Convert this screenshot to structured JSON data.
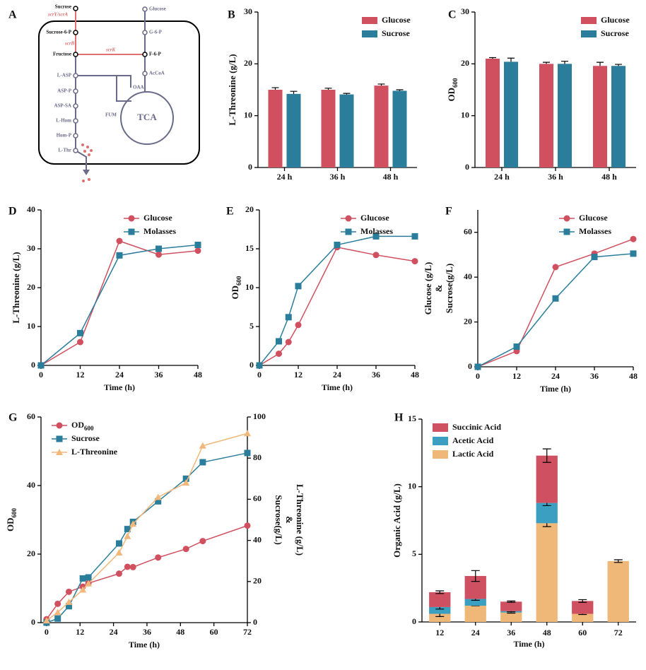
{
  "diagram": {
    "panel": "A",
    "nodes": [
      "Sucrose",
      "Sucrose-6-P",
      "Fructose",
      "F-6-P",
      "Glucose",
      "G-6-P",
      "AcCoA",
      "OAA",
      "L-ASP",
      "ASP-P",
      "ASP-SA",
      "L-Hom",
      "Hom-P",
      "L-Thr",
      "FUM"
    ],
    "enzymes": [
      "scrY/scrA",
      "scrB",
      "scrK"
    ],
    "cycle": "TCA"
  },
  "chart_data": [
    {
      "panel": "B",
      "type": "bar",
      "y_label": "L-Threonine (g/L)",
      "categories": [
        "24 h",
        "36 h",
        "48 h"
      ],
      "ylim": [
        0,
        30
      ],
      "yticks": [
        0,
        10,
        20,
        30
      ],
      "legend": "upper right",
      "series": [
        {
          "name": "Glucose",
          "color": "#d0505f",
          "values": [
            15,
            15,
            15.8
          ],
          "errors": [
            0.4,
            0.3,
            0.3
          ]
        },
        {
          "name": "Sucrose",
          "color": "#2a7d9b",
          "values": [
            14.2,
            14.1,
            14.8
          ],
          "errors": [
            0.5,
            0.2,
            0.2
          ]
        }
      ]
    },
    {
      "panel": "C",
      "type": "bar",
      "y_label": "OD",
      "y_label_sub": "600",
      "categories": [
        "24 h",
        "36 h",
        "48 h"
      ],
      "ylim": [
        0,
        30
      ],
      "yticks": [
        0,
        10,
        20,
        30
      ],
      "legend": "upper right",
      "series": [
        {
          "name": "Glucose",
          "color": "#d0505f",
          "values": [
            21,
            20,
            19.6
          ],
          "errors": [
            0.2,
            0.3,
            0.7
          ]
        },
        {
          "name": "Sucrose",
          "color": "#2a7d9b",
          "values": [
            20.4,
            20,
            19.6
          ],
          "errors": [
            0.7,
            0.5,
            0.3
          ]
        }
      ]
    },
    {
      "panel": "D",
      "type": "line",
      "x_label": "Time (h)",
      "y_label": "L-Threonine (g/L)",
      "x": [
        0,
        12,
        24,
        36,
        48
      ],
      "xlim": [
        0,
        48
      ],
      "xticks": [
        0,
        12,
        24,
        36,
        48
      ],
      "ylim": [
        0,
        40
      ],
      "yticks": [
        0,
        10,
        20,
        30,
        40
      ],
      "legend": "upper right",
      "series": [
        {
          "name": "Glucose",
          "color": "#d0505f",
          "marker": "circle",
          "values": [
            0,
            6,
            32,
            28.5,
            29.5
          ]
        },
        {
          "name": "Molasses",
          "color": "#2a7d9b",
          "marker": "square",
          "values": [
            0,
            8.3,
            28.3,
            30,
            31
          ]
        }
      ]
    },
    {
      "panel": "E",
      "type": "line",
      "x_label": "Time (h)",
      "y_label": "OD",
      "y_label_sub": "600",
      "x": [
        0,
        6,
        9,
        12,
        24,
        36,
        48
      ],
      "xlim": [
        0,
        48
      ],
      "xticks": [
        0,
        12,
        24,
        36,
        48
      ],
      "ylim": [
        0,
        20
      ],
      "yticks": [
        0,
        5,
        10,
        15,
        20
      ],
      "legend": "upper right",
      "series": [
        {
          "name": "Glucose",
          "color": "#d0505f",
          "marker": "circle",
          "values": [
            0,
            1.5,
            3,
            5.2,
            15.2,
            14.2,
            13.4
          ]
        },
        {
          "name": "Molasses",
          "color": "#2a7d9b",
          "marker": "square",
          "values": [
            0,
            3.1,
            6.2,
            10.2,
            15.5,
            16.6,
            16.6
          ]
        }
      ]
    },
    {
      "panel": "F",
      "type": "line",
      "x_label": "Time (h)",
      "y_label": [
        "Glucose (g/L)",
        "&",
        "Sucrose(g/L)"
      ],
      "x": [
        0,
        12,
        24,
        36,
        48
      ],
      "xlim": [
        0,
        48
      ],
      "xticks": [
        0,
        12,
        24,
        36,
        48
      ],
      "ylim": [
        0,
        70
      ],
      "yticks": [
        0,
        20,
        40,
        60
      ],
      "legend": "upper right",
      "series": [
        {
          "name": "Glucose",
          "color": "#d0505f",
          "marker": "circle",
          "values": [
            0,
            7,
            44.5,
            50.5,
            57
          ]
        },
        {
          "name": "Molasses",
          "color": "#2a7d9b",
          "marker": "square",
          "values": [
            0,
            9,
            30.5,
            49,
            50.5
          ]
        }
      ]
    },
    {
      "panel": "G",
      "type": "line",
      "x_label": "Time (h)",
      "y_label": "OD",
      "y_label_sub": "600",
      "y2_label": [
        "L-Threonine (g/L)",
        "&",
        "Sucrose(g/L)"
      ],
      "x": [
        0,
        4,
        8,
        13,
        15,
        26,
        29,
        31,
        40,
        50,
        56,
        72
      ],
      "xlim": [
        -2,
        72
      ],
      "xticks": [
        0,
        12,
        24,
        36,
        48,
        60,
        72
      ],
      "ylim": [
        0,
        60
      ],
      "yticks": [
        0,
        20,
        40,
        60
      ],
      "y2lim": [
        0,
        100
      ],
      "y2ticks": [
        0,
        20,
        40,
        60,
        80,
        100
      ],
      "legend": "upper left",
      "series": [
        {
          "name": "OD",
          "name_sub": "600",
          "color": "#d0505f",
          "marker": "circle",
          "values": [
            1,
            5.5,
            9,
            10.5,
            11.5,
            14.3,
            16.3,
            16.2,
            19,
            21.5,
            23.8,
            28.3
          ]
        },
        {
          "name": "Sucrose",
          "color": "#2a7d9b",
          "marker": "square",
          "axis": "y2",
          "values": [
            0,
            2,
            8,
            21.5,
            22,
            38.5,
            45.5,
            49,
            59,
            70,
            78,
            82.5
          ]
        },
        {
          "name": "L-Threonine",
          "color": "#f2b77a",
          "marker": "triangle",
          "axis": "y2",
          "values": [
            1,
            5,
            10,
            16,
            19,
            34,
            42,
            48,
            61,
            68,
            86,
            92
          ]
        }
      ]
    },
    {
      "panel": "H",
      "type": "stacked_bar",
      "x_label": "Time (h)",
      "y_label": "Organic Acid (g/L)",
      "categories": [
        "12",
        "24",
        "36",
        "48",
        "60",
        "72"
      ],
      "ylim": [
        0,
        15
      ],
      "yticks": [
        0,
        5,
        10,
        15
      ],
      "legend": "upper left",
      "series": [
        {
          "name": "Succinic Acid",
          "color": "#cf5060",
          "values": [
            1.1,
            1.7,
            0.7,
            3.5,
            0.95,
            0
          ],
          "errors": [
            0.1,
            0.4,
            0.05,
            0.5,
            0.1,
            0
          ]
        },
        {
          "name": "Acetic Acid",
          "color": "#3a9fc0",
          "values": [
            0.5,
            0.5,
            0.1,
            1.5,
            0,
            0
          ],
          "errors": [
            0.15,
            0.1,
            0.05,
            0.2,
            0,
            0
          ]
        },
        {
          "name": "Lactic Acid",
          "color": "#f0b878",
          "values": [
            0.6,
            1.2,
            0.7,
            7.3,
            0.6,
            4.5
          ],
          "errors": [
            0.2,
            0,
            0.05,
            0.25,
            0.05,
            0.1
          ]
        }
      ]
    }
  ]
}
